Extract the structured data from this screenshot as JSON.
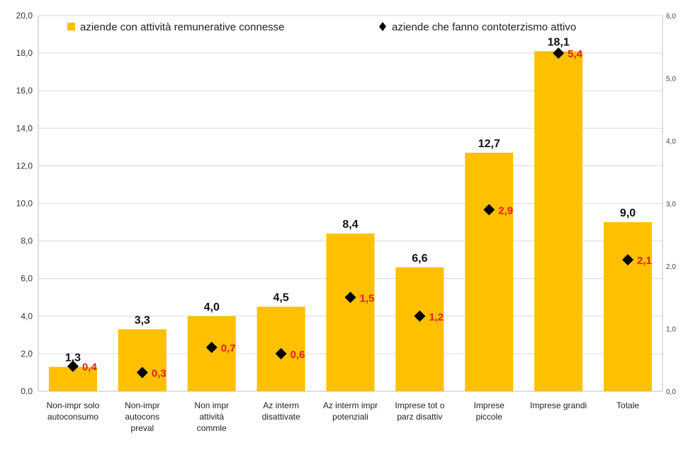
{
  "chart_data": {
    "type": "bar",
    "categories": [
      [
        "Non-impr solo",
        "autoconsumo"
      ],
      [
        "Non-impr",
        "autocons",
        "preval"
      ],
      [
        "Non impr",
        "attività",
        "commle"
      ],
      [
        "Az interm",
        "disattivate"
      ],
      [
        "Az interm impr",
        "potenziali"
      ],
      [
        "Imprese tot o",
        "parz disattiv"
      ],
      [
        "Imprese",
        "piccole"
      ],
      [
        "Imprese grandi"
      ],
      [
        "Totale"
      ]
    ],
    "series": [
      {
        "name": "aziende con attività remunerative connesse",
        "type": "bar",
        "axis": "left",
        "values": [
          1.3,
          3.3,
          4.0,
          4.5,
          8.4,
          6.6,
          12.7,
          18.1,
          9.0
        ],
        "labels": [
          "1,3",
          "3,3",
          "4,0",
          "4,5",
          "8,4",
          "6,6",
          "12,7",
          "18,1",
          "9,0"
        ]
      },
      {
        "name": "aziende che fanno contoterzismo attivo",
        "type": "scatter",
        "axis": "right",
        "values": [
          0.4,
          0.3,
          0.7,
          0.6,
          1.5,
          1.2,
          2.9,
          5.4,
          2.1
        ],
        "labels": [
          "0,4",
          "0,3",
          "0,7",
          "0,6",
          "1,5",
          "1,2",
          "2,9",
          "5,4",
          "2,1"
        ]
      }
    ],
    "y_left": {
      "min": 0,
      "max": 20,
      "step": 2,
      "ticks": [
        "0,0",
        "2,0",
        "4,0",
        "6,0",
        "8,0",
        "10,0",
        "12,0",
        "14,0",
        "16,0",
        "18,0",
        "20,0"
      ]
    },
    "y_right": {
      "min": 0,
      "max": 6,
      "step": 1,
      "ticks": [
        "0,0",
        "1,0",
        "2,0",
        "3,0",
        "4,0",
        "5,0",
        "6,0"
      ]
    },
    "grid": true,
    "legend_position": "top",
    "colors": {
      "bar": "#ffc000",
      "marker": "#000000",
      "point_label": "#e02020",
      "grid": "#d9d9d9"
    }
  }
}
